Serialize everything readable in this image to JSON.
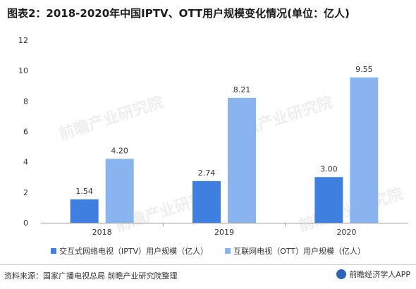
{
  "title": "图表2：2018-2020年中国IPTV、OTT用户规模变化情况(单位：亿人)",
  "source": "资料来源：国家广播电视总局 前瞻产业研究院整理",
  "brand": "前瞻经济学人APP",
  "watermark": "前瞻产业研究院",
  "colors": {
    "iptv": "#3e7fe0",
    "ott": "#8ab4ef",
    "axis": "#999999",
    "text": "#333333"
  },
  "chart_data": {
    "type": "bar",
    "categories": [
      "2018",
      "2019",
      "2020"
    ],
    "series": [
      {
        "name": "交互式网络电视（IPTV）用户规模（亿人）",
        "values": [
          1.54,
          2.74,
          3.0
        ],
        "labels": [
          "1.54",
          "2.74",
          "3.00"
        ]
      },
      {
        "name": "互联网电视（OTT）用户规模（亿人）",
        "values": [
          4.2,
          8.21,
          9.55
        ],
        "labels": [
          "4.20",
          "8.21",
          "9.55"
        ]
      }
    ],
    "ylim": [
      0,
      12
    ],
    "yticks": [
      "0",
      "2",
      "4",
      "6",
      "8",
      "10",
      "12"
    ],
    "grid": false,
    "legend_position": "bottom"
  }
}
